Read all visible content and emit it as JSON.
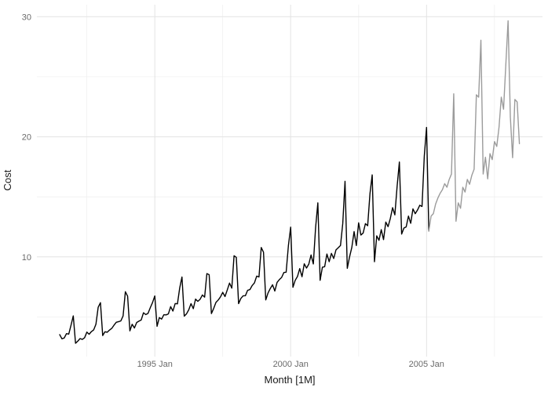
{
  "figure": {
    "background": "#ffffff"
  },
  "chart_data": {
    "type": "line",
    "title": "",
    "xlabel": "Month [1M]",
    "ylabel": "Cost",
    "x_unit": "month",
    "x_start": "1991 Jul",
    "x_end": "2008 Jun",
    "grid": true,
    "legend": "none",
    "ylim": [
      1.7,
      31.0
    ],
    "y_ticks": [
      10,
      20,
      30
    ],
    "y_minor_gridlines": [
      5,
      15,
      25
    ],
    "xlim_month_index": [
      -10.06,
      213.2
    ],
    "x_ticks": [
      {
        "label": "1995 Jan",
        "month_index": 42
      },
      {
        "label": "2000 Jan",
        "month_index": 102
      },
      {
        "label": "2005 Jan",
        "month_index": 162
      }
    ],
    "x_minor_gridline_month_indices": [
      12,
      72,
      132,
      192
    ],
    "colors": {
      "grid_major": "#e3e3e3",
      "grid_minor": "#f0f0f0",
      "tick_label": "#6a6a6a",
      "axis_title": "#1a1a1a"
    },
    "series": [
      {
        "name": "observed-black",
        "color": "#000000",
        "stroke_width": 1.4,
        "start_month_index": 0,
        "start_label": "1991 Jul",
        "end_label": "2005 Feb",
        "values": [
          3.53,
          3.18,
          3.25,
          3.61,
          3.57,
          4.31,
          5.09,
          2.81,
          2.99,
          3.2,
          3.13,
          3.27,
          3.74,
          3.56,
          3.78,
          3.92,
          4.39,
          5.81,
          6.19,
          3.45,
          3.77,
          3.73,
          3.91,
          4.05,
          4.32,
          4.56,
          4.61,
          4.67,
          5.09,
          7.1,
          6.73,
          3.84,
          4.39,
          4.08,
          4.54,
          4.65,
          4.75,
          5.35,
          5.2,
          5.3,
          5.77,
          6.2,
          6.75,
          4.22,
          4.95,
          4.82,
          5.19,
          5.17,
          5.26,
          5.86,
          5.49,
          6.12,
          6.09,
          7.42,
          8.33,
          5.07,
          5.26,
          5.6,
          6.11,
          5.69,
          6.49,
          6.3,
          6.47,
          6.83,
          6.65,
          8.61,
          8.52,
          5.28,
          5.71,
          6.21,
          6.41,
          6.67,
          7.05,
          6.7,
          7.25,
          7.82,
          7.4,
          10.1,
          9.96,
          6.11,
          6.54,
          6.76,
          6.77,
          7.22,
          7.28,
          7.62,
          7.84,
          8.4,
          8.33,
          10.78,
          10.39,
          6.42,
          7.0,
          7.37,
          7.68,
          7.16,
          7.88,
          8.11,
          8.29,
          8.7,
          8.73,
          10.95,
          12.48,
          7.47,
          8.05,
          8.37,
          9.03,
          8.35,
          9.43,
          9.07,
          9.4,
          10.16,
          9.41,
          12.43,
          14.5,
          8.05,
          9.14,
          9.18,
          10.24,
          9.6,
          10.29,
          9.87,
          10.58,
          10.76,
          10.95,
          12.78,
          16.3,
          9.05,
          10.0,
          10.79,
          12.11,
          10.95,
          12.84,
          11.82,
          11.99,
          12.77,
          12.6,
          15.24,
          16.83,
          9.6,
          11.75,
          11.38,
          12.27,
          11.44,
          12.9,
          12.52,
          13.2,
          14.1,
          13.5,
          15.87,
          17.9,
          11.9,
          12.4,
          12.5,
          13.4,
          12.8,
          14.0,
          13.6,
          13.9,
          14.3,
          14.2,
          18.4,
          20.78,
          12.15
        ]
      },
      {
        "name": "continuation-grey",
        "color": "#9b9b9b",
        "stroke_width": 1.4,
        "start_month_index": 163,
        "start_label": "2005 Feb",
        "end_label": "2008 Jun",
        "values": [
          12.15,
          13.4,
          13.6,
          14.4,
          14.9,
          15.3,
          15.6,
          16.1,
          15.8,
          16.45,
          16.9,
          23.58,
          12.97,
          14.5,
          14.05,
          15.8,
          15.4,
          16.45,
          16.05,
          16.8,
          17.3,
          23.5,
          23.3,
          28.04,
          16.9,
          18.3,
          16.5,
          18.6,
          18.1,
          19.6,
          19.2,
          20.8,
          23.3,
          22.3,
          26.0,
          29.66,
          21.65,
          18.26,
          23.11,
          22.91,
          19.43
        ]
      }
    ]
  }
}
